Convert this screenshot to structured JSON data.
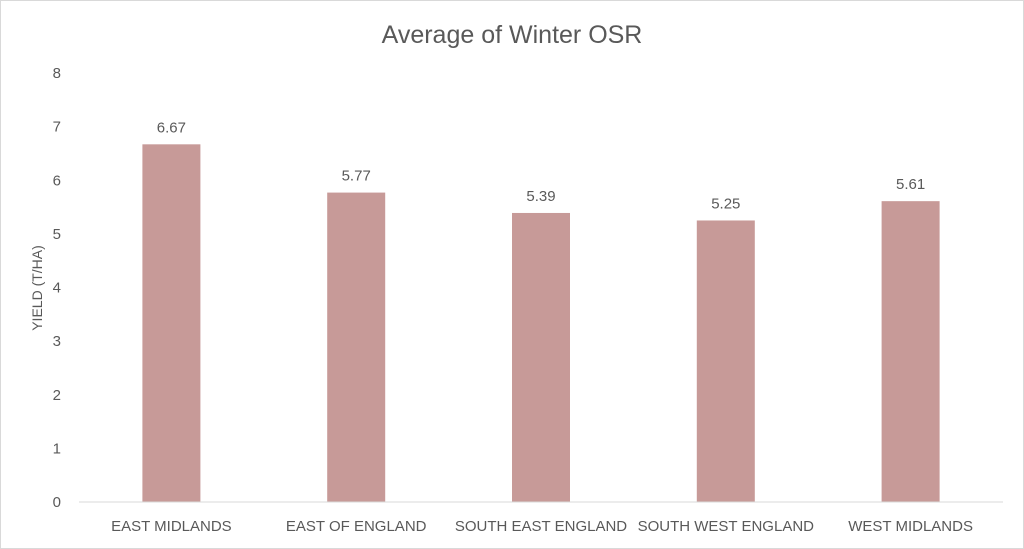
{
  "chart_data": {
    "type": "bar",
    "title": "Average of Winter OSR",
    "xlabel": "",
    "ylabel": "YIELD (T/HA)",
    "categories": [
      "EAST MIDLANDS",
      "EAST OF ENGLAND",
      "SOUTH EAST ENGLAND",
      "SOUTH WEST ENGLAND",
      "WEST MIDLANDS"
    ],
    "values": [
      6.67,
      5.77,
      5.39,
      5.25,
      5.61
    ],
    "data_labels": [
      "6.67",
      "5.77",
      "5.39",
      "5.25",
      "5.61"
    ],
    "yticks": [
      "0",
      "1",
      "2",
      "3",
      "4",
      "5",
      "6",
      "7",
      "8"
    ],
    "ylim": [
      0,
      8
    ],
    "grid": false,
    "legend": "none",
    "colors": {
      "bar": "#c79a98",
      "text": "#595959",
      "axis": "#d9d9d9"
    }
  }
}
